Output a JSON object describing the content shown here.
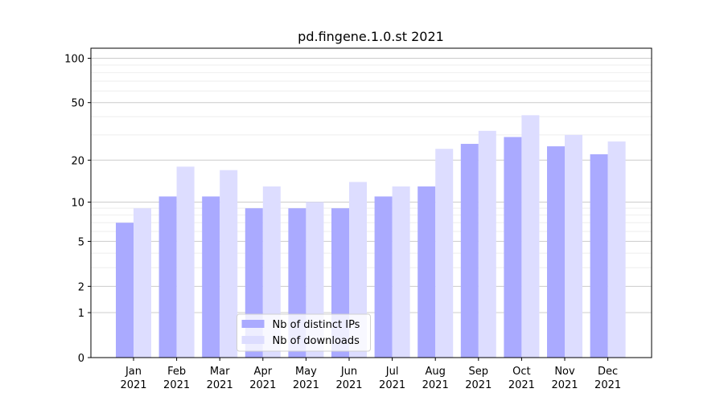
{
  "chart_data": {
    "type": "bar",
    "title": "pd.fingene.1.0.st 2021",
    "categories": [
      "Jan\n2021",
      "Feb\n2021",
      "Mar\n2021",
      "Apr\n2021",
      "May\n2021",
      "Jun\n2021",
      "Jul\n2021",
      "Aug\n2021",
      "Sep\n2021",
      "Oct\n2021",
      "Nov\n2021",
      "Dec\n2021"
    ],
    "series": [
      {
        "name": "Nb of distinct IPs",
        "color": "#aaaaff",
        "values": [
          7,
          11,
          11,
          9,
          9,
          9,
          11,
          13,
          26,
          29,
          25,
          22
        ]
      },
      {
        "name": "Nb of downloads",
        "color": "#ddddff",
        "values": [
          9,
          18,
          17,
          13,
          10,
          14,
          13,
          24,
          32,
          41,
          30,
          27
        ]
      }
    ],
    "yscale": "log1p",
    "ylim": [
      0,
      117
    ],
    "yticks": [
      0,
      1,
      2,
      5,
      10,
      20,
      50,
      100
    ],
    "yminorticks": [
      3,
      4,
      6,
      7,
      8,
      9,
      30,
      40,
      60,
      70,
      80,
      90
    ],
    "grid": true,
    "legend": "lower center"
  }
}
